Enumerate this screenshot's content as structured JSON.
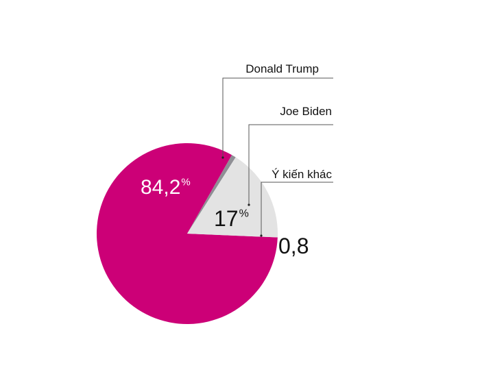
{
  "chart_data": {
    "type": "pie",
    "title": "",
    "slices": [
      {
        "label": "Donald Trump",
        "value": 84.2,
        "value_label": "84,2",
        "unit": "%",
        "color": "#cc0077"
      },
      {
        "label": "Joe Biden",
        "value": 17,
        "value_label": "17",
        "unit": "%",
        "color": "#e3e3e3"
      },
      {
        "label": "Ý kiến khác",
        "value": 0.8,
        "value_label": "0,8",
        "unit": "",
        "color": "#8f8f95"
      }
    ],
    "legend_placement": "right, with leader lines",
    "colors": {
      "leader_line": "#555555",
      "text_dark": "#111111",
      "text_light": "#ffffff"
    }
  }
}
